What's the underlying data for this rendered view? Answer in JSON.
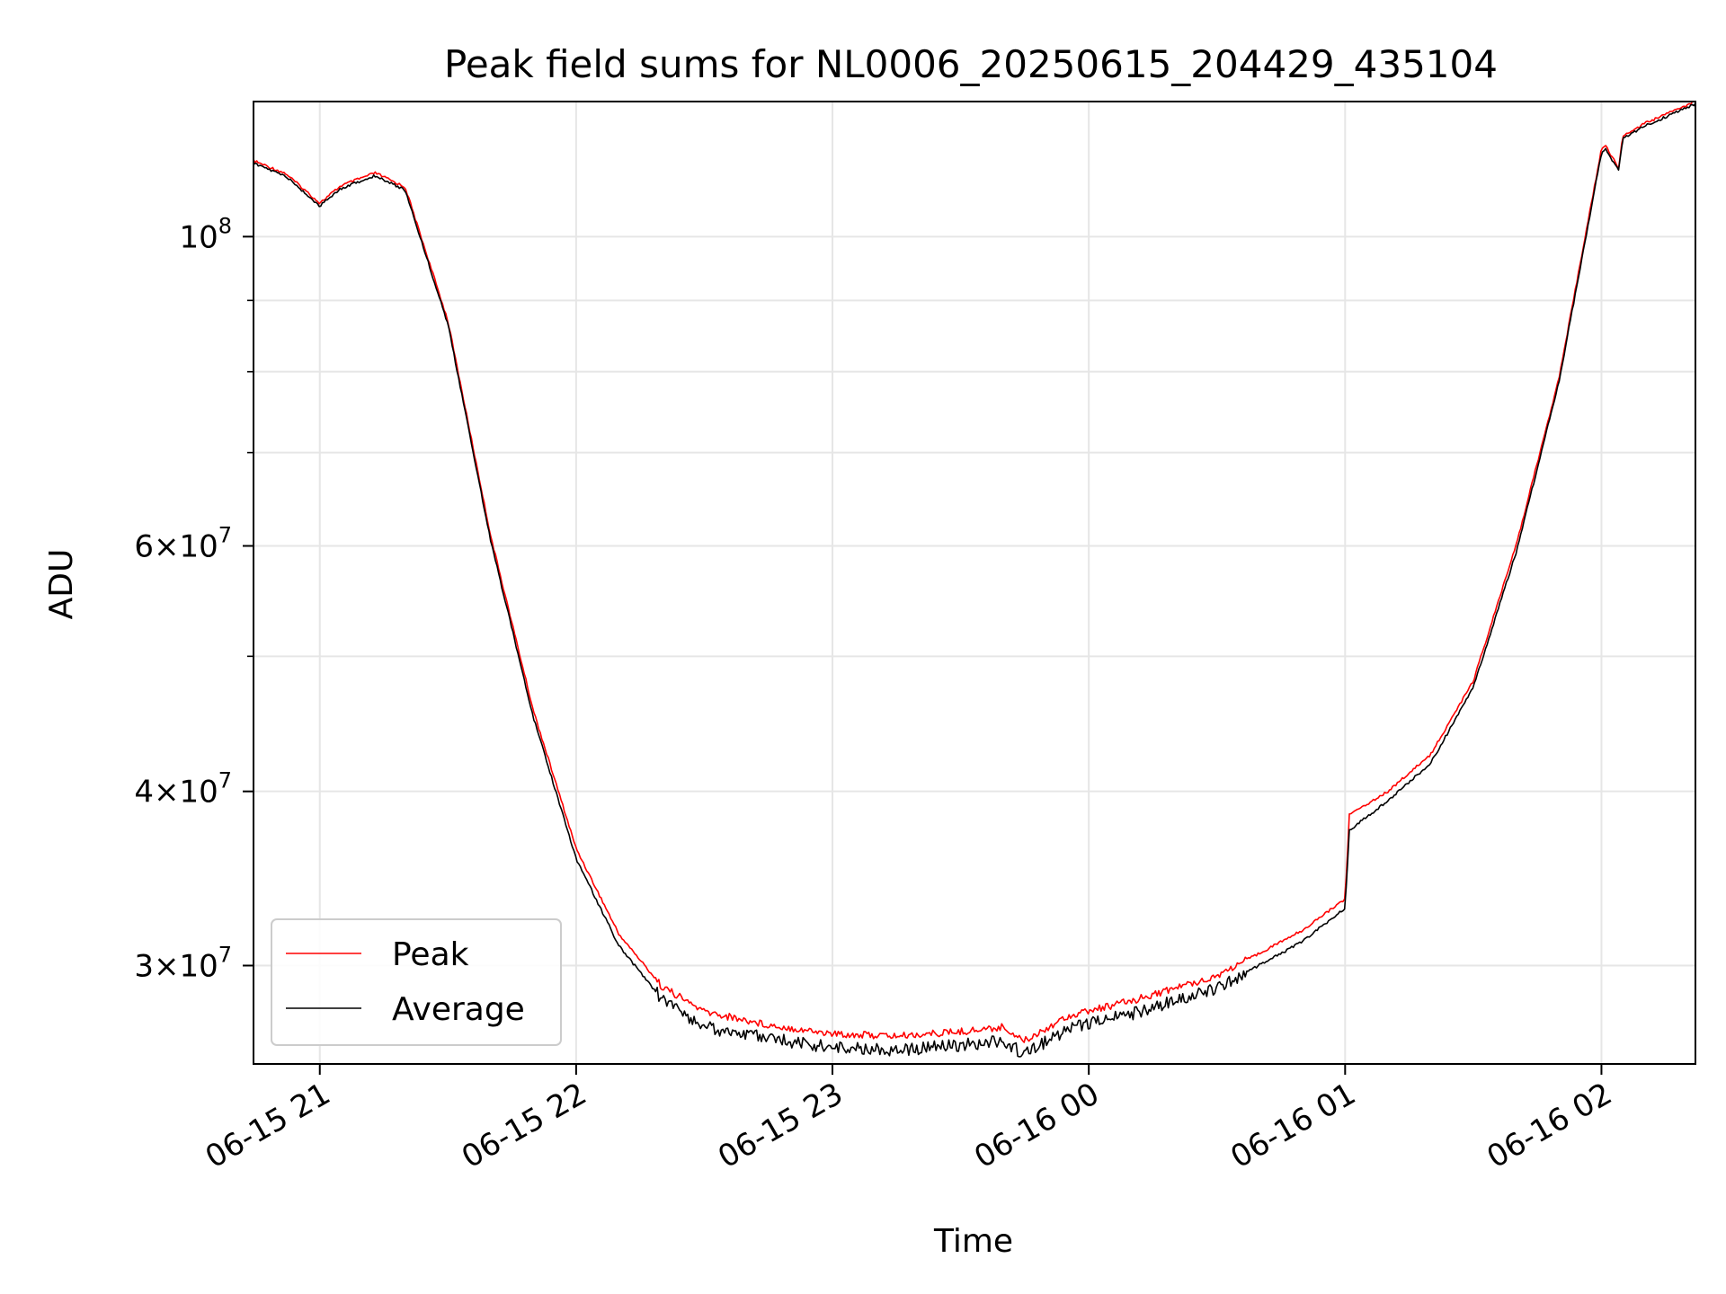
{
  "chart_data": {
    "type": "line",
    "title": "Peak field sums for NL0006_20250615_204429_435104",
    "xlabel": "Time",
    "ylabel": "ADU",
    "x_scale": "time",
    "y_scale": "log",
    "xlim": [
      "2025-06-15 20:44:29",
      "2025-06-16 02:22:00"
    ],
    "ylim": [
      25500000,
      125000000
    ],
    "x_ticks": [
      {
        "value": "2025-06-15 21:00",
        "label": "06-15 21"
      },
      {
        "value": "2025-06-15 22:00",
        "label": "06-15 22"
      },
      {
        "value": "2025-06-15 23:00",
        "label": "06-15 23"
      },
      {
        "value": "2025-06-16 00:00",
        "label": "06-16 00"
      },
      {
        "value": "2025-06-16 01:00",
        "label": "06-16 01"
      },
      {
        "value": "2025-06-16 02:00",
        "label": "06-16 02"
      }
    ],
    "y_ticks_major": [
      {
        "value": 100000000,
        "base": "10",
        "exp": "8",
        "mantissa": ""
      },
      {
        "value": 60000000,
        "base": "10",
        "exp": "7",
        "mantissa": "6"
      },
      {
        "value": 40000000,
        "base": "10",
        "exp": "7",
        "mantissa": "4"
      },
      {
        "value": 30000000,
        "base": "10",
        "exp": "7",
        "mantissa": "3"
      }
    ],
    "y_ticks_minor": [
      90000000,
      80000000,
      70000000,
      50000000
    ],
    "grid": true,
    "legend_position": "lower-left",
    "colors": {
      "peak": "#ff0000",
      "average": "#000000",
      "grid": "#e6e6e6"
    },
    "series": [
      {
        "name": "Peak",
        "color": "#ff0000",
        "x": [
          "2025-06-15 20:44",
          "2025-06-15 20:52",
          "2025-06-15 21:00",
          "2025-06-15 21:05",
          "2025-06-15 21:13",
          "2025-06-15 21:20",
          "2025-06-15 21:30",
          "2025-06-15 21:40",
          "2025-06-15 21:50",
          "2025-06-15 22:00",
          "2025-06-15 22:10",
          "2025-06-15 22:20",
          "2025-06-15 22:30",
          "2025-06-15 22:45",
          "2025-06-15 23:00",
          "2025-06-15 23:15",
          "2025-06-15 23:30",
          "2025-06-15 23:40",
          "2025-06-15 23:45",
          "2025-06-15 23:55",
          "2025-06-16 00:10",
          "2025-06-16 00:30",
          "2025-06-16 00:50",
          "2025-06-16 01:00",
          "2025-06-16 01:01",
          "2025-06-16 01:10",
          "2025-06-16 01:20",
          "2025-06-16 01:30",
          "2025-06-16 01:40",
          "2025-06-16 01:50",
          "2025-06-16 02:00",
          "2025-06-16 02:01",
          "2025-06-16 02:04",
          "2025-06-16 02:05",
          "2025-06-16 02:10",
          "2025-06-16 02:22"
        ],
        "y": [
          113500000,
          111000000,
          105700000,
          108800000,
          111100000,
          108500000,
          87000000,
          61000000,
          45700000,
          36400000,
          31600000,
          29000000,
          27800000,
          27200000,
          26800000,
          26700000,
          26900000,
          27100000,
          26500000,
          27600000,
          28300000,
          29500000,
          31800000,
          33500000,
          38500000,
          40000000,
          42500000,
          48000000,
          60000000,
          79000000,
          115500000,
          116200000,
          112000000,
          118000000,
          120500000,
          125000000
        ]
      },
      {
        "name": "Average",
        "color": "#000000",
        "x": [
          "2025-06-15 20:44",
          "2025-06-15 20:52",
          "2025-06-15 21:00",
          "2025-06-15 21:05",
          "2025-06-15 21:13",
          "2025-06-15 21:20",
          "2025-06-15 21:30",
          "2025-06-15 21:40",
          "2025-06-15 21:50",
          "2025-06-15 22:00",
          "2025-06-15 22:10",
          "2025-06-15 22:20",
          "2025-06-15 22:30",
          "2025-06-15 22:45",
          "2025-06-15 23:00",
          "2025-06-15 23:15",
          "2025-06-15 23:30",
          "2025-06-15 23:40",
          "2025-06-15 23:45",
          "2025-06-15 23:55",
          "2025-06-16 00:10",
          "2025-06-16 00:30",
          "2025-06-16 00:50",
          "2025-06-16 01:00",
          "2025-06-16 01:01",
          "2025-06-16 01:10",
          "2025-06-16 01:20",
          "2025-06-16 01:30",
          "2025-06-16 01:40",
          "2025-06-16 01:50",
          "2025-06-16 02:00",
          "2025-06-16 02:01",
          "2025-06-16 02:04",
          "2025-06-16 02:05",
          "2025-06-16 02:10",
          "2025-06-16 02:22"
        ],
        "y": [
          113000000,
          110500000,
          105200000,
          108300000,
          110600000,
          108000000,
          86500000,
          60500000,
          45200000,
          35800000,
          31000000,
          28400000,
          27100000,
          26600000,
          26200000,
          26100000,
          26300000,
          26500000,
          25900000,
          27000000,
          27700000,
          28900000,
          31200000,
          33000000,
          37500000,
          39400000,
          41900000,
          47500000,
          59300000,
          78500000,
          114800000,
          115500000,
          111500000,
          117500000,
          120000000,
          124500000
        ]
      }
    ]
  }
}
